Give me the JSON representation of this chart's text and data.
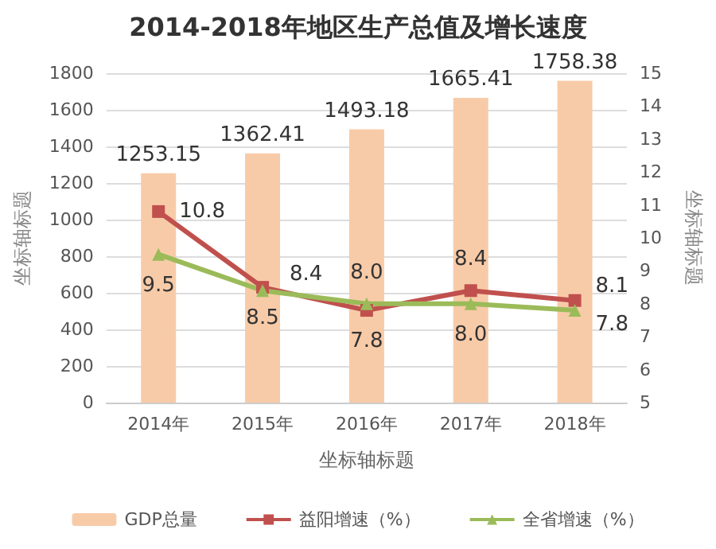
{
  "chart_data": {
    "type": "bar",
    "title": "2014-2018年地区生产总值及增长速度",
    "xlabel": "坐标轴标题",
    "ylabel": "坐标轴标题",
    "y2label": "坐标轴标题",
    "categories": [
      "2014年",
      "2015年",
      "2016年",
      "2017年",
      "2018年"
    ],
    "series": [
      {
        "name": "GDP总量",
        "color": "#f8cba8",
        "values": [
          1253.15,
          1362.41,
          1493.18,
          1665.41,
          1758.38
        ]
      },
      {
        "name": "益阳增速（%）",
        "type": "line",
        "axis": "y2",
        "marker": "square",
        "color": "#c0504d",
        "values": [
          10.8,
          8.5,
          7.8,
          8.4,
          8.1
        ]
      },
      {
        "name": "全省增速（%）",
        "type": "line",
        "axis": "y2",
        "marker": "triangle",
        "color": "#9bbb59",
        "values": [
          9.5,
          8.4,
          8.0,
          8.0,
          7.8
        ],
        "value_labels": [
          "9.5",
          "8.4",
          "8.0",
          "8.0",
          "7.8"
        ]
      }
    ],
    "ylim": [
      0,
      1800
    ],
    "yticks": [
      0,
      200,
      400,
      600,
      800,
      1000,
      1200,
      1400,
      1600,
      1800
    ],
    "y2lim": [
      5,
      15
    ],
    "y2ticks": [
      5,
      6,
      7,
      8,
      9,
      10,
      11,
      12,
      13,
      14,
      15
    ],
    "data_labels": true,
    "grid": "y",
    "legend": "bottom"
  }
}
